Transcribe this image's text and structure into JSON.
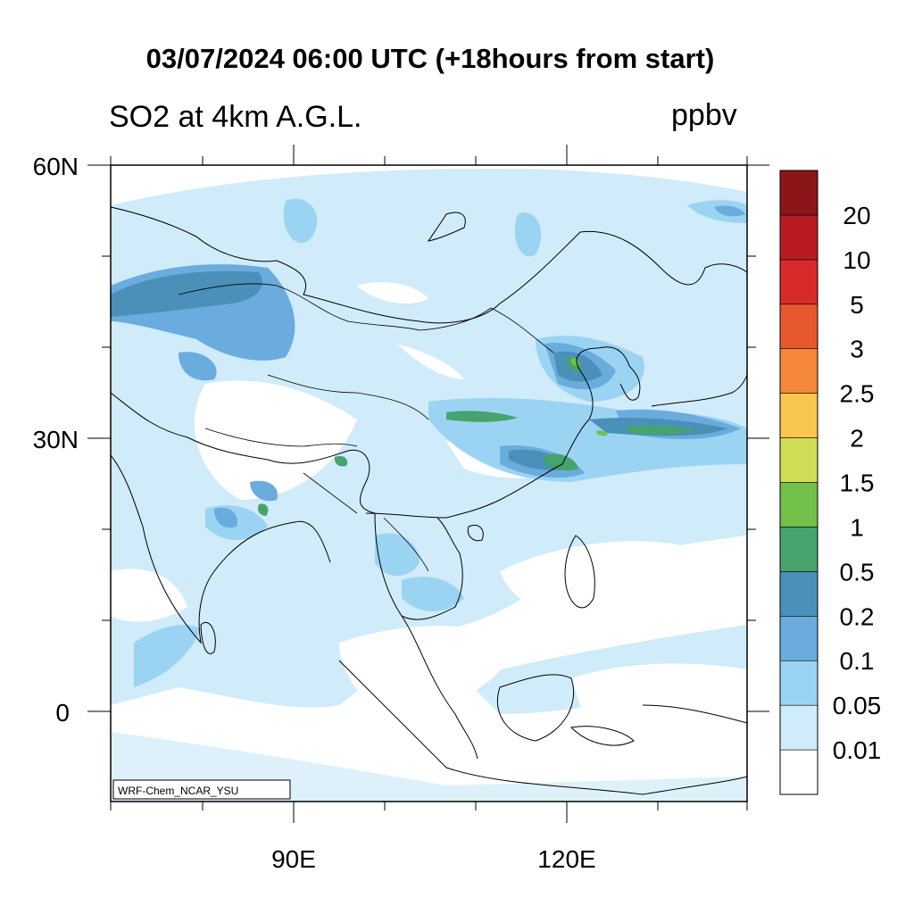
{
  "title": "03/07/2024 06:00 UTC (+18hours from start)",
  "subtitle": "SO2 at 4km A.G.L.",
  "units": "ppbv",
  "credit": "WRF-Chem_NCAR_YSU",
  "lat_labels": [
    "60N",
    "30N",
    "0"
  ],
  "lon_labels": [
    "90E",
    "120E"
  ],
  "colorbar": {
    "levels": [
      "0.01",
      "0.05",
      "0.1",
      "0.2",
      "0.5",
      "1",
      "1.5",
      "2",
      "2.5",
      "3",
      "5",
      "10",
      "20"
    ],
    "colors": [
      "#ffffff",
      "#d0ebfa",
      "#9bd4f2",
      "#6aacde",
      "#4a90b8",
      "#47a36d",
      "#72c04a",
      "#d1dd57",
      "#f9c64e",
      "#f5883a",
      "#e8582f",
      "#d92a2a",
      "#b81c22",
      "#8c1518"
    ]
  },
  "map": {
    "land_color": "#ffffff",
    "background_so2": "#cfeaf9",
    "extent": {
      "lon": [
        70,
        140
      ],
      "lat": [
        -10,
        60
      ]
    }
  }
}
